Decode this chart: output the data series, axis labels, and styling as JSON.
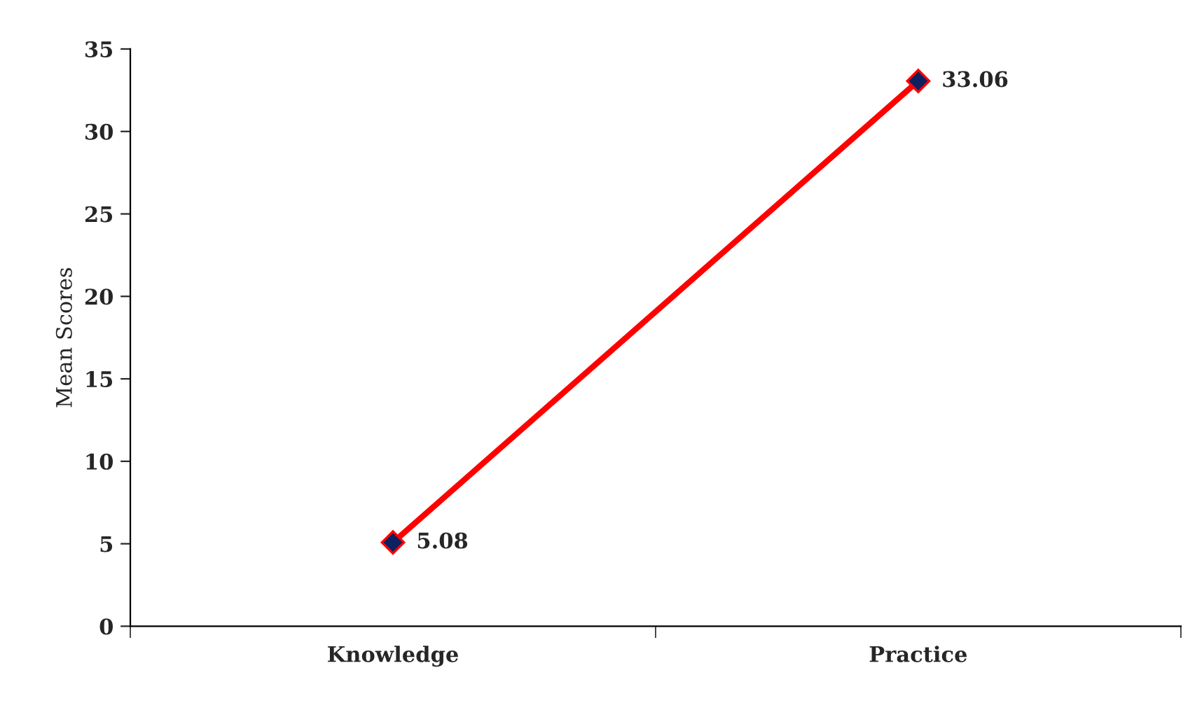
{
  "chart_data": {
    "type": "line",
    "ylabel": "Mean Scores",
    "categories": [
      "Knowledge",
      "Practice"
    ],
    "series": [
      {
        "color": "#ff0000",
        "values": [
          5.08,
          33.06
        ]
      }
    ],
    "ylim": [
      0,
      35
    ],
    "yticks": [
      0,
      5,
      10,
      15,
      20,
      25,
      30,
      35
    ],
    "marker": "diamond",
    "line_style": "solid",
    "data_labels": true,
    "grid": false,
    "legend": false
  }
}
